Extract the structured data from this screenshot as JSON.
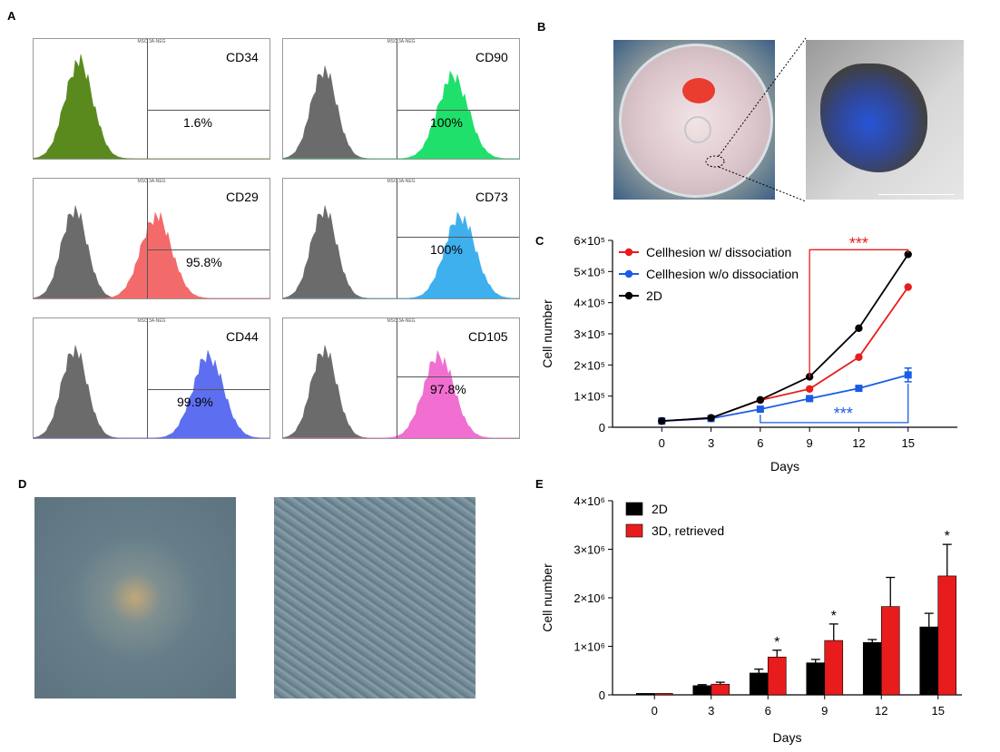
{
  "panels": {
    "a": "A",
    "b": "B",
    "c": "C",
    "d": "D",
    "e": "E"
  },
  "flow_header": "MSC 3A-NEG",
  "flow": [
    {
      "marker": "CD34",
      "percent": "1.6%",
      "color": "#5a8a1e",
      "sample": "positive"
    },
    {
      "marker": "CD90",
      "percent": "100%",
      "color": "#1fe06a",
      "sample": "positive"
    },
    {
      "marker": "CD29",
      "percent": "95.8%",
      "color": "#f36a6a",
      "sample": "positive"
    },
    {
      "marker": "CD73",
      "percent": "100%",
      "color": "#3fb0ee",
      "sample": "positive"
    },
    {
      "marker": "CD44",
      "percent": "99.9%",
      "color": "#5d6ff0",
      "sample": "positive"
    },
    {
      "marker": "CD105",
      "percent": "97.8%",
      "color": "#f06fd0",
      "sample": "positive"
    }
  ],
  "chart_data": [
    {
      "type": "line",
      "title": "",
      "xlabel": "Days",
      "ylabel": "Cell number",
      "x": [
        0,
        3,
        6,
        9,
        12,
        15
      ],
      "ylim": [
        0,
        600000
      ],
      "yticks": [
        "0",
        "1×10⁵",
        "2×10⁵",
        "3×10⁵",
        "4×10⁵",
        "5×10⁵",
        "6×10⁵"
      ],
      "series": [
        {
          "name": "Cellhesion w/ dissociation",
          "color": "#e81c1c",
          "values": [
            20000,
            30000,
            87000,
            123000,
            225000,
            450000
          ]
        },
        {
          "name": "Cellhesion w/o dissociation",
          "color": "#1a5ce8",
          "values": [
            20000,
            28000,
            58000,
            92000,
            125000,
            168000
          ],
          "errors": [
            0,
            0,
            0,
            5000,
            6000,
            22000
          ]
        },
        {
          "name": "2D",
          "color": "#000000",
          "values": [
            20000,
            30000,
            88000,
            162000,
            318000,
            555000
          ]
        }
      ],
      "annotations": [
        {
          "text": "***",
          "color": "#e81c1c"
        },
        {
          "text": "***",
          "color": "#1a5ce8"
        }
      ]
    },
    {
      "type": "bar",
      "title": "",
      "xlabel": "Days",
      "ylabel": "Cell number",
      "categories": [
        "0",
        "3",
        "6",
        "9",
        "12",
        "15"
      ],
      "ylim": [
        0,
        4000000
      ],
      "yticks": [
        "0",
        "1×10⁶",
        "2×10⁶",
        "3×10⁶",
        "4×10⁶"
      ],
      "series": [
        {
          "name": "2D",
          "color": "#000000",
          "values": [
            30000,
            190000,
            450000,
            660000,
            1080000,
            1400000
          ],
          "errors": [
            0,
            20000,
            80000,
            70000,
            60000,
            280000
          ]
        },
        {
          "name": "3D, retrieved",
          "color": "#e81c1c",
          "values": [
            30000,
            220000,
            780000,
            1120000,
            1820000,
            2450000
          ],
          "errors": [
            0,
            40000,
            140000,
            340000,
            600000,
            650000
          ]
        }
      ],
      "significance": [
        "",
        "",
        "*",
        "*",
        "",
        "*"
      ]
    }
  ]
}
